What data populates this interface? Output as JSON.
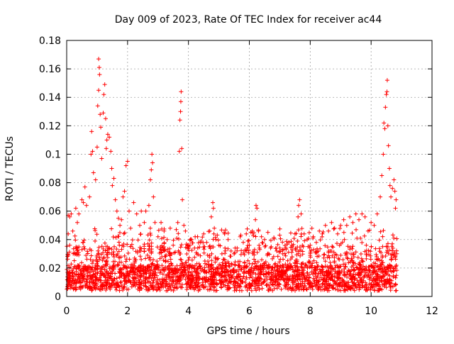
{
  "chart_data": {
    "type": "scatter",
    "title": "Day 009 of 2023, Rate Of TEC Index for receiver ac44",
    "xlabel": "GPS time / hours",
    "ylabel": "ROTI / TECUs",
    "xlim": [
      0,
      12
    ],
    "ylim": [
      0,
      0.18
    ],
    "xticks": [
      0,
      2,
      4,
      6,
      8,
      10,
      12
    ],
    "yticks": [
      0,
      0.02,
      0.04,
      0.06,
      0.08,
      0.1,
      0.12,
      0.14,
      0.16,
      0.18
    ],
    "xtick_labels": [
      "0",
      "2",
      "4",
      "6",
      "8",
      "10",
      "12"
    ],
    "ytick_labels": [
      "0",
      "0.02",
      "0.04",
      "0.06",
      "0.08",
      "0.1",
      "0.12",
      "0.14",
      "0.16",
      "0.18"
    ],
    "grid": true,
    "marker": "+",
    "series_color": "#ff0000",
    "series": [
      {
        "name": "ROTI",
        "points": [
          [
            0.05,
            0.057
          ],
          [
            0.1,
            0.056
          ],
          [
            0.15,
            0.058
          ],
          [
            0.05,
            0.044
          ],
          [
            0.1,
            0.036
          ],
          [
            0.2,
            0.046
          ],
          [
            0.3,
            0.062
          ],
          [
            0.35,
            0.052
          ],
          [
            0.4,
            0.058
          ],
          [
            0.5,
            0.068
          ],
          [
            0.55,
            0.066
          ],
          [
            0.6,
            0.077
          ],
          [
            0.65,
            0.064
          ],
          [
            0.75,
            0.07
          ],
          [
            0.8,
            0.1
          ],
          [
            0.82,
            0.116
          ],
          [
            0.85,
            0.102
          ],
          [
            0.88,
            0.087
          ],
          [
            0.95,
            0.082
          ],
          [
            1.0,
            0.105
          ],
          [
            1.02,
            0.134
          ],
          [
            1.05,
            0.145
          ],
          [
            1.05,
            0.167
          ],
          [
            1.07,
            0.161
          ],
          [
            1.08,
            0.156
          ],
          [
            1.1,
            0.128
          ],
          [
            1.12,
            0.119
          ],
          [
            1.15,
            0.097
          ],
          [
            1.2,
            0.129
          ],
          [
            1.22,
            0.142
          ],
          [
            1.25,
            0.149
          ],
          [
            1.28,
            0.125
          ],
          [
            1.3,
            0.104
          ],
          [
            1.32,
            0.11
          ],
          [
            1.35,
            0.114
          ],
          [
            1.4,
            0.112
          ],
          [
            1.45,
            0.102
          ],
          [
            1.48,
            0.09
          ],
          [
            1.5,
            0.078
          ],
          [
            1.55,
            0.083
          ],
          [
            1.6,
            0.068
          ],
          [
            1.65,
            0.06
          ],
          [
            1.7,
            0.055
          ],
          [
            1.75,
            0.05
          ],
          [
            1.8,
            0.054
          ],
          [
            1.85,
            0.07
          ],
          [
            1.9,
            0.074
          ],
          [
            1.95,
            0.092
          ],
          [
            2.0,
            0.095
          ],
          [
            2.05,
            0.06
          ],
          [
            2.1,
            0.048
          ],
          [
            2.2,
            0.066
          ],
          [
            2.3,
            0.058
          ],
          [
            2.4,
            0.05
          ],
          [
            2.45,
            0.06
          ],
          [
            2.55,
            0.052
          ],
          [
            2.6,
            0.06
          ],
          [
            2.7,
            0.064
          ],
          [
            2.75,
            0.082
          ],
          [
            2.78,
            0.089
          ],
          [
            2.8,
            0.1
          ],
          [
            2.82,
            0.094
          ],
          [
            2.85,
            0.07
          ],
          [
            2.9,
            0.052
          ],
          [
            3.0,
            0.042
          ],
          [
            3.1,
            0.052
          ],
          [
            3.2,
            0.046
          ],
          [
            3.3,
            0.04
          ],
          [
            3.4,
            0.048
          ],
          [
            3.5,
            0.036
          ],
          [
            3.6,
            0.047
          ],
          [
            3.65,
            0.052
          ],
          [
            3.7,
            0.102
          ],
          [
            3.72,
            0.124
          ],
          [
            3.74,
            0.13
          ],
          [
            3.75,
            0.137
          ],
          [
            3.76,
            0.144
          ],
          [
            3.78,
            0.104
          ],
          [
            3.8,
            0.068
          ],
          [
            3.85,
            0.05
          ],
          [
            3.9,
            0.046
          ],
          [
            4.0,
            0.036
          ],
          [
            4.1,
            0.04
          ],
          [
            4.2,
            0.034
          ],
          [
            4.3,
            0.042
          ],
          [
            4.4,
            0.038
          ],
          [
            4.5,
            0.044
          ],
          [
            4.6,
            0.038
          ],
          [
            4.7,
            0.046
          ],
          [
            4.75,
            0.056
          ],
          [
            4.8,
            0.066
          ],
          [
            4.82,
            0.062
          ],
          [
            4.85,
            0.048
          ],
          [
            4.9,
            0.04
          ],
          [
            5.0,
            0.036
          ],
          [
            5.1,
            0.03
          ],
          [
            5.2,
            0.034
          ],
          [
            5.3,
            0.04
          ],
          [
            5.4,
            0.032
          ],
          [
            5.5,
            0.03
          ],
          [
            5.6,
            0.034
          ],
          [
            5.7,
            0.042
          ],
          [
            5.8,
            0.038
          ],
          [
            5.9,
            0.044
          ],
          [
            6.0,
            0.036
          ],
          [
            6.1,
            0.046
          ],
          [
            6.2,
            0.054
          ],
          [
            6.22,
            0.064
          ],
          [
            6.25,
            0.062
          ],
          [
            6.3,
            0.046
          ],
          [
            6.4,
            0.042
          ],
          [
            6.5,
            0.04
          ],
          [
            6.6,
            0.03
          ],
          [
            6.7,
            0.034
          ],
          [
            6.8,
            0.028
          ],
          [
            6.9,
            0.032
          ],
          [
            7.0,
            0.034
          ],
          [
            7.1,
            0.03
          ],
          [
            7.2,
            0.034
          ],
          [
            7.3,
            0.038
          ],
          [
            7.4,
            0.036
          ],
          [
            7.5,
            0.044
          ],
          [
            7.6,
            0.056
          ],
          [
            7.62,
            0.064
          ],
          [
            7.65,
            0.068
          ],
          [
            7.7,
            0.058
          ],
          [
            7.8,
            0.044
          ],
          [
            7.9,
            0.04
          ],
          [
            8.0,
            0.036
          ],
          [
            8.1,
            0.042
          ],
          [
            8.2,
            0.038
          ],
          [
            8.3,
            0.046
          ],
          [
            8.4,
            0.044
          ],
          [
            8.5,
            0.05
          ],
          [
            8.6,
            0.046
          ],
          [
            8.7,
            0.052
          ],
          [
            8.8,
            0.048
          ],
          [
            8.9,
            0.044
          ],
          [
            9.0,
            0.05
          ],
          [
            9.1,
            0.054
          ],
          [
            9.2,
            0.05
          ],
          [
            9.3,
            0.056
          ],
          [
            9.4,
            0.052
          ],
          [
            9.5,
            0.058
          ],
          [
            9.6,
            0.054
          ],
          [
            9.7,
            0.058
          ],
          [
            9.8,
            0.056
          ],
          [
            9.9,
            0.046
          ],
          [
            10.0,
            0.052
          ],
          [
            10.1,
            0.05
          ],
          [
            10.2,
            0.058
          ],
          [
            10.3,
            0.07
          ],
          [
            10.35,
            0.085
          ],
          [
            10.4,
            0.1
          ],
          [
            10.42,
            0.122
          ],
          [
            10.45,
            0.118
          ],
          [
            10.47,
            0.133
          ],
          [
            10.5,
            0.142
          ],
          [
            10.52,
            0.144
          ],
          [
            10.53,
            0.152
          ],
          [
            10.55,
            0.12
          ],
          [
            10.57,
            0.106
          ],
          [
            10.6,
            0.09
          ],
          [
            10.62,
            0.078
          ],
          [
            10.65,
            0.07
          ],
          [
            10.7,
            0.076
          ],
          [
            10.75,
            0.082
          ],
          [
            10.78,
            0.074
          ],
          [
            10.8,
            0.062
          ],
          [
            10.82,
            0.068
          ]
        ]
      }
    ]
  }
}
